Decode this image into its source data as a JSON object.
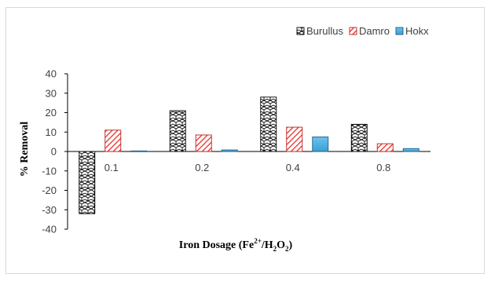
{
  "chart_data": {
    "type": "bar",
    "title": "",
    "xlabel": "Iron Dosage (Fe2+/H2O2)",
    "xlabel_parts": {
      "base": "Iron Dosage (Fe",
      "sup": "2+",
      "mid": "/H",
      "sub1": "2",
      "mid2": "O",
      "sub2": "2",
      "end": ")"
    },
    "ylabel": "% Removal",
    "categories": [
      "0.1",
      "0.2",
      "0.4",
      "0.8"
    ],
    "ylim": [
      -40,
      40
    ],
    "yticks": [
      -40,
      -30,
      -20,
      -10,
      0,
      10,
      20,
      30,
      40
    ],
    "grid": false,
    "legend_position": "top-right",
    "series": [
      {
        "name": "Burullus",
        "values": [
          -32,
          21,
          28,
          14
        ],
        "pattern": "hex-lattice",
        "color": "#000000"
      },
      {
        "name": "Damro",
        "values": [
          11,
          8.5,
          12.5,
          4
        ],
        "pattern": "red-diagonal",
        "color": "#e8302a"
      },
      {
        "name": "Hokx",
        "values": [
          0.3,
          0.8,
          7.5,
          1.5
        ],
        "pattern": "solid-blue",
        "color": "#43a7d8"
      }
    ]
  }
}
